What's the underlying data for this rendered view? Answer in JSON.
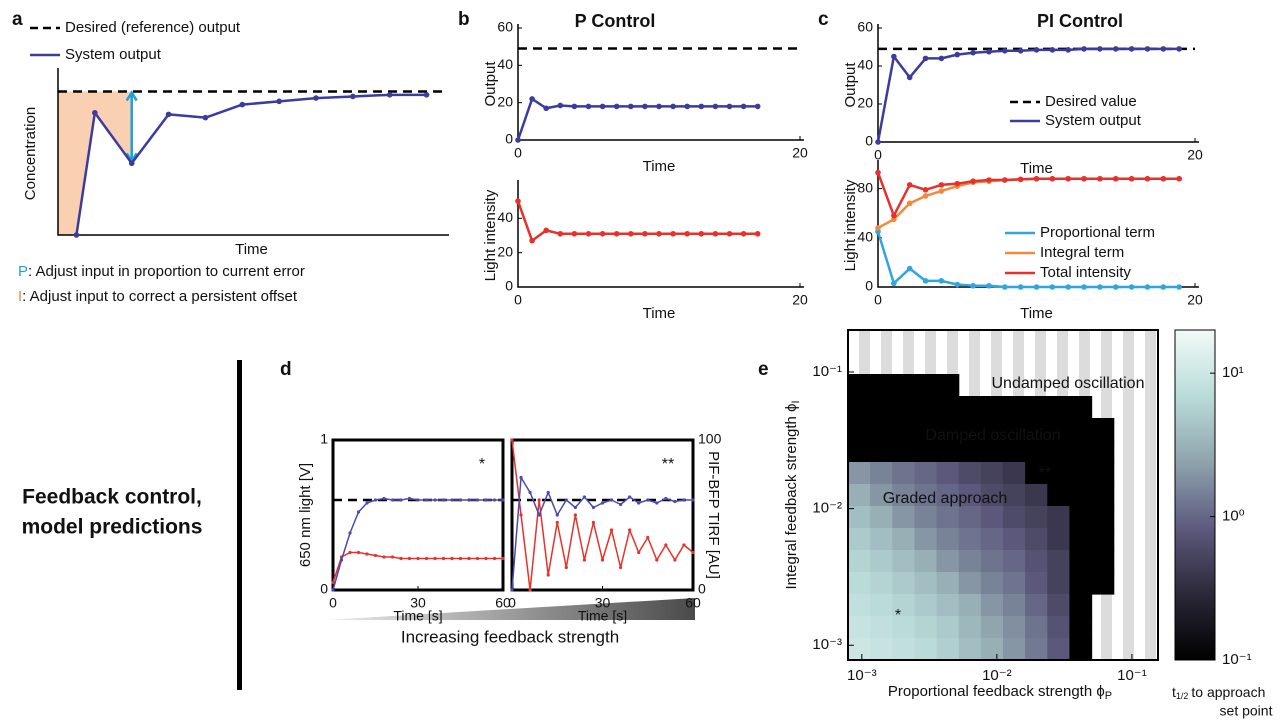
{
  "side_label": [
    "Feedback control,",
    "model predictions"
  ],
  "wedge_label": "Increasing feedback strength",
  "chart_data": [
    {
      "type": "line",
      "panel": "a",
      "xlabel": "Time",
      "ylabel": "Concentration",
      "xlim": [
        -0.5,
        10
      ],
      "ylim": [
        0,
        100
      ],
      "x": [
        0,
        0.5,
        1.5,
        2.5,
        3.5,
        4.5,
        5.5,
        6.5,
        7.5,
        8.5,
        9.5
      ],
      "reference": {
        "value": 88,
        "name": "Desired (reference) output"
      },
      "series": [
        {
          "name": "System output",
          "color": "#3b3ba0",
          "marker": true,
          "values": [
            0,
            75,
            44,
            74,
            72,
            80,
            82,
            84,
            85,
            86,
            86
          ]
        }
      ],
      "captions": [
        {
          "letter": "P",
          "text": ": Adjust input in proportion to current error",
          "color": "#1ea0dc"
        },
        {
          "letter": "I",
          "text": ": Adjust input to correct a persistent offset",
          "color": "#f08a3c"
        }
      ]
    },
    {
      "type": "line",
      "panel": "b",
      "title": "P Control",
      "ylabel": "Output",
      "xlabel": "Time",
      "xlim": [
        0,
        20
      ],
      "ylim": [
        0,
        60
      ],
      "xticks": [
        0,
        20
      ],
      "yticks": [
        0,
        20,
        40,
        60
      ],
      "x": [
        0,
        1,
        2,
        3,
        4,
        5,
        6,
        7,
        8,
        9,
        10,
        11,
        12,
        13,
        14,
        15,
        16,
        17
      ],
      "reference": {
        "value": 49
      },
      "series": [
        {
          "color": "#3b3ba0",
          "marker": true,
          "values": [
            0,
            22,
            17,
            18.5,
            18,
            18,
            18,
            18,
            18,
            18,
            18,
            18,
            18,
            18,
            18,
            18,
            18,
            18
          ]
        }
      ]
    },
    {
      "type": "line",
      "ylabel": "Light intensity",
      "xlabel": "Time",
      "xlim": [
        0,
        20
      ],
      "ylim": [
        0,
        60
      ],
      "xticks": [
        0,
        20
      ],
      "yticks": [
        0,
        20,
        40
      ],
      "x": [
        0,
        1,
        2,
        3,
        4,
        5,
        6,
        7,
        8,
        9,
        10,
        11,
        12,
        13,
        14,
        15,
        16,
        17
      ],
      "series": [
        {
          "color": "#e8312a",
          "marker": true,
          "values": [
            50,
            27,
            33,
            31,
            31,
            31,
            31,
            31,
            31,
            31,
            31,
            31,
            31,
            31,
            31,
            31,
            31,
            31
          ]
        }
      ]
    },
    {
      "type": "line",
      "panel": "c",
      "title": "PI Control",
      "ylabel": "Output",
      "xlabel": "Time",
      "xlim": [
        0,
        20
      ],
      "ylim": [
        0,
        60
      ],
      "xticks": [
        0,
        20
      ],
      "yticks": [
        0,
        20,
        40,
        60
      ],
      "x": [
        0,
        1,
        2,
        3,
        4,
        5,
        6,
        7,
        8,
        9,
        10,
        11,
        12,
        13,
        14,
        15,
        16,
        17,
        18,
        19
      ],
      "reference": {
        "value": 49,
        "name": "Desired value"
      },
      "series": [
        {
          "name": "System output",
          "color": "#3b3ba0",
          "marker": true,
          "values": [
            0,
            45,
            34,
            44,
            44,
            46,
            47,
            47.5,
            48,
            48,
            48.5,
            48.5,
            48.5,
            49,
            49,
            49,
            49,
            49,
            49,
            49
          ]
        }
      ]
    },
    {
      "type": "line",
      "ylabel": "Light intensity",
      "xlabel": "Time",
      "xlim": [
        0,
        20
      ],
      "ylim": [
        0,
        100
      ],
      "xticks": [
        0,
        20
      ],
      "yticks": [
        0,
        40,
        80
      ],
      "x": [
        0,
        1,
        2,
        3,
        4,
        5,
        6,
        7,
        8,
        9,
        10,
        11,
        12,
        13,
        14,
        15,
        16,
        17,
        18,
        19
      ],
      "series": [
        {
          "name": "Proportional term",
          "color": "#2fa6e0",
          "marker": true,
          "values": [
            45,
            3,
            15,
            5,
            5,
            2,
            1,
            1,
            0,
            0,
            0,
            0,
            0,
            0,
            0,
            0,
            0,
            0,
            0,
            0
          ]
        },
        {
          "name": "Integral term",
          "color": "#f08a3c",
          "marker": true,
          "values": [
            48,
            55,
            68,
            74,
            78,
            82,
            85,
            86,
            87,
            87.5,
            88,
            88,
            88,
            88,
            88,
            88,
            88,
            88,
            88,
            88
          ]
        },
        {
          "name": "Total intensity",
          "color": "#e8312a",
          "marker": true,
          "values": [
            93,
            58,
            83,
            79,
            83,
            84,
            86,
            87,
            87,
            87.5,
            88,
            88,
            88,
            88,
            88,
            88,
            88,
            88,
            88,
            88
          ]
        }
      ]
    },
    {
      "type": "line",
      "panel": "d",
      "box": true,
      "xlabel": "Time [s]",
      "ylabel": "650 nm light [V]",
      "ycolor": "#e8312a",
      "xlim": [
        0,
        60
      ],
      "ylim": [
        0,
        1
      ],
      "y2lim": [
        0,
        100
      ],
      "xticks": [
        0,
        30,
        60
      ],
      "yticks": [
        0,
        1
      ],
      "x": [
        0,
        3,
        6,
        9,
        12,
        15,
        18,
        21,
        24,
        27,
        30,
        33,
        36,
        39,
        42,
        45,
        48,
        51,
        54,
        57,
        60
      ],
      "reference": {
        "value": 60,
        "axis": "y2"
      },
      "annotations": [
        {
          "text": "*",
          "color": "#000000"
        }
      ],
      "series": [
        {
          "color": "#e8312a",
          "marker": true,
          "values": [
            0.05,
            0.22,
            0.25,
            0.25,
            0.24,
            0.23,
            0.22,
            0.22,
            0.21,
            0.21,
            0.21,
            0.21,
            0.21,
            0.21,
            0.21,
            0.21,
            0.21,
            0.21,
            0.21,
            0.21,
            0.21
          ]
        },
        {
          "color": "#4a4ab0",
          "marker": true,
          "axis": "y2",
          "values": [
            0,
            20,
            38,
            52,
            58,
            60,
            61,
            60,
            60,
            61,
            60,
            60,
            60,
            60,
            60,
            60,
            60,
            60,
            60,
            60,
            60
          ]
        }
      ]
    },
    {
      "type": "line",
      "box": true,
      "xlabel": "Time [s]",
      "y2label": "PIF-BFP TIRF [AU]",
      "y2color": "#4a4ab0",
      "xlim": [
        0,
        60
      ],
      "ylim": [
        0,
        1
      ],
      "y2lim": [
        0,
        100
      ],
      "xticks": [
        0,
        30,
        60
      ],
      "y2ticks": [
        0,
        100
      ],
      "x": [
        0,
        3,
        6,
        9,
        12,
        15,
        18,
        21,
        24,
        27,
        30,
        33,
        36,
        39,
        42,
        45,
        48,
        51,
        54,
        57,
        60
      ],
      "reference": {
        "value": 60,
        "axis": "y2"
      },
      "annotations": [
        {
          "text": "**",
          "color": "#000000"
        }
      ],
      "series": [
        {
          "color": "#e8312a",
          "marker": true,
          "values": [
            1.0,
            0.5,
            0.0,
            0.6,
            0.1,
            0.45,
            0.15,
            0.5,
            0.2,
            0.45,
            0.2,
            0.4,
            0.15,
            0.4,
            0.25,
            0.35,
            0.2,
            0.3,
            0.2,
            0.3,
            0.25
          ]
        },
        {
          "color": "#4a4ab0",
          "marker": true,
          "axis": "y2",
          "values": [
            0,
            75,
            65,
            50,
            65,
            50,
            60,
            55,
            62,
            55,
            58,
            60,
            57,
            62,
            58,
            60,
            58,
            61,
            59,
            60,
            60
          ]
        }
      ]
    },
    {
      "type": "heatmap",
      "panel": "e",
      "xlabel": "Proportional feedback strength ϕ",
      "xlabel_subscript": "P",
      "ylabel": "Integral feedback strength ϕ",
      "ylabel_subscript": "I",
      "xlog": true,
      "ylog": true,
      "xlim": [
        0.00079,
        0.156
      ],
      "ylim": [
        0.00078,
        0.203
      ],
      "xticks": [
        {
          "value": 0.001,
          "label": "10⁻³"
        },
        {
          "value": 0.01,
          "label": "10⁻²"
        },
        {
          "value": 0.1,
          "label": "10⁻¹"
        }
      ],
      "yticks": [
        {
          "value": 0.001,
          "label": "10⁻³"
        },
        {
          "value": 0.01,
          "label": "10⁻²"
        },
        {
          "value": 0.1,
          "label": "10⁻¹"
        }
      ],
      "values": [
        [
          null,
          null,
          null,
          null,
          null,
          null,
          null,
          null,
          null,
          null,
          null,
          null,
          null,
          null
        ],
        [
          null,
          null,
          null,
          null,
          null,
          null,
          null,
          null,
          null,
          null,
          null,
          null,
          null,
          null
        ],
        [
          0.1,
          0.1,
          0.1,
          0.1,
          0.1,
          null,
          null,
          null,
          null,
          null,
          null,
          null,
          null,
          null
        ],
        [
          0.1,
          0.1,
          0.1,
          0.1,
          0.1,
          0.1,
          0.1,
          0.1,
          0.1,
          0.1,
          0.1,
          null,
          null,
          null
        ],
        [
          0.1,
          0.1,
          0.1,
          0.1,
          0.1,
          0.1,
          0.1,
          0.1,
          0.1,
          0.1,
          0.1,
          0.1,
          null,
          null
        ],
        [
          0.1,
          0.1,
          0.1,
          0.1,
          0.1,
          0.1,
          0.1,
          0.1,
          0.1,
          0.1,
          0.1,
          0.1,
          null,
          null
        ],
        [
          2,
          1.5,
          1.2,
          1,
          0.8,
          0.6,
          0.5,
          0.4,
          0.1,
          0.1,
          0.1,
          0.1,
          null,
          null
        ],
        [
          3,
          2,
          1.5,
          1.2,
          1,
          0.8,
          0.6,
          0.5,
          0.4,
          0.1,
          0.1,
          0.1,
          null,
          null
        ],
        [
          4,
          3,
          2,
          1.5,
          1.2,
          1,
          0.8,
          0.6,
          0.5,
          0.4,
          0.1,
          0.1,
          null,
          null
        ],
        [
          5,
          4,
          3,
          2,
          1.5,
          1.2,
          1,
          0.8,
          0.6,
          0.4,
          0.1,
          0.1,
          null,
          null
        ],
        [
          6,
          5,
          4,
          3,
          2,
          1.5,
          1.2,
          1,
          0.7,
          0.5,
          0.1,
          0.1,
          null,
          null
        ],
        [
          7,
          6,
          5,
          4,
          3,
          2,
          1.5,
          1.2,
          0.8,
          0.5,
          0.1,
          0.1,
          null,
          null
        ],
        [
          8,
          7,
          6,
          5,
          4,
          3,
          2,
          1.5,
          1,
          0.6,
          0.1,
          null,
          null,
          null
        ],
        [
          9,
          8,
          7,
          6,
          5,
          3.5,
          2.5,
          1.8,
          1.2,
          0.7,
          0.1,
          null,
          null,
          null
        ],
        [
          10,
          9,
          8,
          7,
          5.5,
          4,
          3,
          2,
          1.3,
          0.8,
          0.1,
          null,
          null,
          null
        ]
      ],
      "colormap": [
        "#000000",
        "#2b2838",
        "#5d5a7e",
        "#8fa3ad",
        "#b9dcd9",
        "#f2faf9"
      ],
      "clim": [
        0.1,
        20
      ],
      "cticks": [
        {
          "value": 0.1,
          "label": "10⁻¹"
        },
        {
          "value": 1,
          "label": "10⁰"
        },
        {
          "value": 10,
          "label": "10¹"
        }
      ],
      "colorbar_label": {
        "symbol": "t",
        "subscript": "1/2",
        "text": "to approach",
        "line2": "set point"
      },
      "annotations": [
        {
          "text": "Undamped oscillation",
          "color": "#000000"
        },
        {
          "text": "Damped oscillation",
          "color": "#ffffff"
        },
        {
          "text": "Graded approach",
          "color": "#111111"
        },
        {
          "text": "**",
          "color": "#ffffff"
        },
        {
          "text": "*",
          "color": "#111111"
        }
      ]
    }
  ]
}
